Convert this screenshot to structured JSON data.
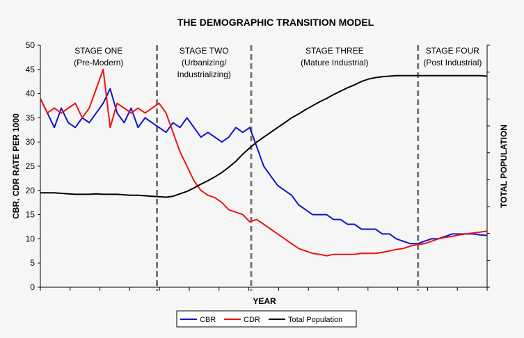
{
  "chart_data": {
    "type": "line",
    "title": "THE DEMOGRAPHIC TRANSITION MODEL",
    "xlabel": "YEAR",
    "ylabel": "CBR, CDR RATE PER 1000",
    "y2label": "TOTAL POPULATION",
    "ylim": [
      0,
      50
    ],
    "yticks": [
      0,
      5,
      10,
      15,
      20,
      25,
      30,
      35,
      40,
      45,
      50
    ],
    "y2lim": [
      0,
      50
    ],
    "grid": false,
    "legend": "bottom",
    "stages": [
      {
        "title": "STAGE ONE",
        "subtitle": "(Pre-Modern)",
        "start": 0,
        "end": 16.7
      },
      {
        "title": "STAGE TWO",
        "subtitle": "(Urbanizing/",
        "subtitle2": "Industrializing)",
        "start": 16.7,
        "end": 30.2
      },
      {
        "title": "STAGE THREE",
        "subtitle": "(Mature Industrial)",
        "start": 30.2,
        "end": 54.1
      },
      {
        "title": "STAGE FOUR",
        "subtitle": "(Post Industrial)",
        "start": 54.1,
        "end": 64
      }
    ],
    "series": [
      {
        "name": "CBR",
        "color": "#1010d0",
        "axis": "left",
        "values": [
          39,
          36,
          33,
          37,
          34,
          33,
          35,
          34,
          36,
          38,
          41,
          36,
          34,
          37,
          33,
          35,
          34,
          33,
          32,
          34,
          33,
          35,
          33,
          31,
          32,
          31,
          30,
          31,
          33,
          32,
          33,
          29,
          25,
          23,
          21,
          20,
          19,
          17,
          16,
          15,
          15,
          15,
          14,
          14,
          13,
          13,
          12,
          12,
          12,
          11,
          11,
          10,
          9.5,
          9,
          9,
          9.5,
          10,
          10,
          10.5,
          11,
          11,
          11,
          11,
          10.8,
          10.7
        ]
      },
      {
        "name": "CDR",
        "color": "#ee1111",
        "axis": "left",
        "values": [
          39,
          36,
          37,
          36,
          37,
          38,
          35,
          37,
          41,
          45,
          33,
          38,
          37,
          36,
          37,
          36,
          37,
          38,
          36,
          32,
          28,
          25,
          22,
          20,
          19,
          18.5,
          17.5,
          16,
          15.5,
          15,
          13.5,
          14,
          13,
          12,
          11,
          10,
          9,
          8,
          7.5,
          7,
          6.8,
          6.5,
          6.8,
          6.8,
          6.8,
          6.8,
          7,
          7,
          7,
          7.2,
          7.5,
          7.8,
          8,
          8.5,
          8.8,
          9,
          9.5,
          10,
          10.3,
          10.5,
          10.8,
          11,
          11.2,
          11.4,
          11.6
        ]
      },
      {
        "name": "Total Population",
        "color": "#000000",
        "axis": "right",
        "values": [
          19.5,
          19.5,
          19.5,
          19.4,
          19.3,
          19.2,
          19.2,
          19.2,
          19.3,
          19.2,
          19.2,
          19.2,
          19.1,
          19.0,
          19.0,
          18.9,
          18.8,
          18.7,
          18.6,
          18.8,
          19.3,
          19.8,
          20.5,
          21.3,
          22,
          22.8,
          23.7,
          24.8,
          26,
          27.5,
          28.8,
          30,
          31,
          32,
          33,
          34,
          35,
          35.8,
          36.7,
          37.5,
          38.3,
          39,
          39.8,
          40.5,
          41.2,
          41.8,
          42.5,
          43,
          43.3,
          43.5,
          43.6,
          43.7,
          43.7,
          43.7,
          43.7,
          43.7,
          43.7,
          43.7,
          43.7,
          43.7,
          43.7,
          43.7,
          43.7,
          43.7,
          43.6
        ]
      }
    ]
  }
}
